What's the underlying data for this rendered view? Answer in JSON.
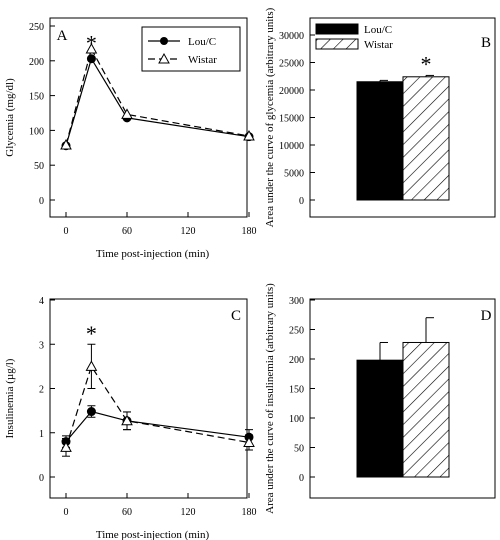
{
  "chart_data": [
    {
      "panel_label": "A",
      "type": "line",
      "xlabel": "Time post-injection (min)",
      "ylabel": "Glycemia (mg/dl)",
      "xlim": [
        -10,
        190
      ],
      "ylim": [
        0,
        250
      ],
      "xticks": [
        0,
        60,
        120,
        180
      ],
      "yticks": [
        0,
        50,
        100,
        150,
        200,
        250
      ],
      "legend": {
        "position": "top-right",
        "entries": [
          "Lou/C",
          "Wistar"
        ]
      },
      "annotations": [
        {
          "text": "*",
          "x": 25,
          "y": 232
        }
      ],
      "series": [
        {
          "name": "Lou/C",
          "marker": "filled-circle",
          "line": "solid",
          "x": [
            0,
            25,
            60,
            180
          ],
          "y": [
            78,
            203,
            118,
            91
          ],
          "err": [
            0,
            0,
            0,
            0
          ]
        },
        {
          "name": "Wistar",
          "marker": "open-triangle",
          "line": "dashed",
          "x": [
            0,
            25,
            60,
            180
          ],
          "y": [
            79,
            217,
            123,
            92
          ],
          "err": [
            0,
            0,
            0,
            0
          ]
        }
      ]
    },
    {
      "panel_label": "B",
      "type": "bar",
      "ylabel": "Area under the curve of glycemia (arbitrary units)",
      "ylim": [
        0,
        30000
      ],
      "yticks": [
        0,
        5000,
        10000,
        15000,
        20000,
        25000,
        30000
      ],
      "legend": {
        "position": "top-left",
        "entries": [
          "Lou/C",
          "Wistar"
        ]
      },
      "annotations": [
        {
          "text": "*",
          "bar": 1
        }
      ],
      "series": [
        {
          "name": "Lou/C",
          "fill": "solid",
          "value": 21500,
          "err": 250
        },
        {
          "name": "Wistar",
          "fill": "hatched",
          "value": 22400,
          "err": 250
        }
      ]
    },
    {
      "panel_label": "C",
      "type": "line",
      "xlabel": "Time post-injection (min)",
      "ylabel": "Insulinemia (µg/l)",
      "xlim": [
        -10,
        190
      ],
      "ylim": [
        0,
        4
      ],
      "xticks": [
        0,
        60,
        120,
        180
      ],
      "yticks": [
        0,
        1,
        2,
        3,
        4
      ],
      "annotations": [
        {
          "text": "*",
          "x": 25,
          "y": 3.35
        }
      ],
      "series": [
        {
          "name": "Lou/C",
          "marker": "filled-circle",
          "line": "solid",
          "x": [
            0,
            25,
            60,
            180
          ],
          "y": [
            0.8,
            1.48,
            1.27,
            0.9
          ],
          "err": [
            0.13,
            0.13,
            0.2,
            0.17
          ]
        },
        {
          "name": "Wistar",
          "marker": "open-triangle",
          "line": "dashed",
          "x": [
            0,
            25,
            60,
            180
          ],
          "y": [
            0.67,
            2.5,
            1.27,
            0.78
          ],
          "err": [
            0.2,
            0.5,
            0.2,
            0.17
          ]
        }
      ]
    },
    {
      "panel_label": "D",
      "type": "bar",
      "ylabel": "Area under the curve of insulinemia (arbitrary units)",
      "ylim": [
        0,
        300
      ],
      "yticks": [
        0,
        50,
        100,
        150,
        200,
        250,
        300
      ],
      "series": [
        {
          "name": "Lou/C",
          "fill": "solid",
          "value": 198,
          "err": 30
        },
        {
          "name": "Wistar",
          "fill": "hatched",
          "value": 228,
          "err": 42
        }
      ]
    }
  ]
}
